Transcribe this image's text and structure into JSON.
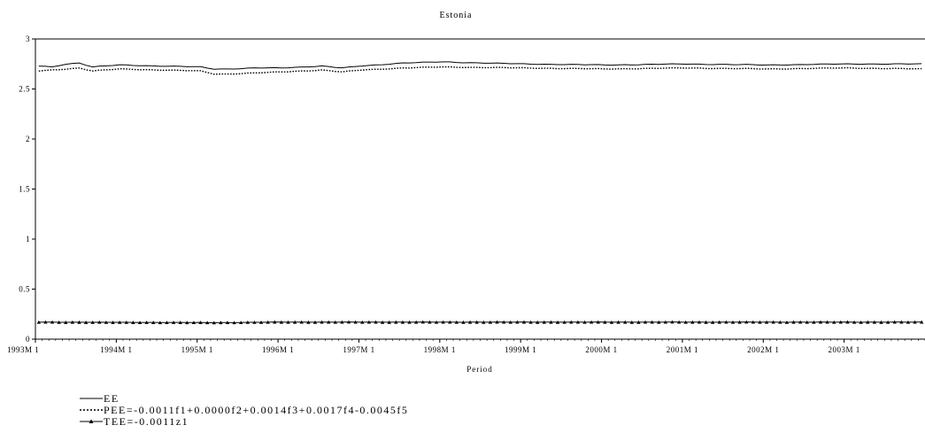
{
  "chart_data": {
    "type": "line",
    "title": "Estonia",
    "xlabel": "Period",
    "ylabel": "",
    "ylim": [
      0,
      3
    ],
    "yticks": [
      0,
      0.5,
      1,
      1.5,
      2,
      2.5,
      3
    ],
    "ytick_labels": [
      "0",
      "0.5",
      "1",
      "1.5",
      "2",
      "2.5",
      "3"
    ],
    "x_start": "1993M1",
    "x_end": "2003M12",
    "x_tick_labels": [
      "1993M 1",
      "1994M 1",
      "1995M 1",
      "1996M 1",
      "1997M 1",
      "1998M 1",
      "1999M 1",
      "2000M 1",
      "2001M 1",
      "2002M 1",
      "2003M 1"
    ],
    "grid": false,
    "legend_position": "bottom-left",
    "series": [
      {
        "name": "EE",
        "style": "solid",
        "color": "#000000",
        "anchors": [
          [
            "1993M1",
            2.73
          ],
          [
            "1993M3",
            2.72
          ],
          [
            "1993M5",
            2.75
          ],
          [
            "1993M7",
            2.76
          ],
          [
            "1993M9",
            2.72
          ],
          [
            "1994M1",
            2.74
          ],
          [
            "1994M7",
            2.73
          ],
          [
            "1995M1",
            2.72
          ],
          [
            "1995M3",
            2.7
          ],
          [
            "1995M5",
            2.7
          ],
          [
            "1995M9",
            2.71
          ],
          [
            "1996M1",
            2.71
          ],
          [
            "1996M7",
            2.73
          ],
          [
            "1996M10",
            2.71
          ],
          [
            "1997M1",
            2.73
          ],
          [
            "1997M7",
            2.76
          ],
          [
            "1998M1",
            2.77
          ],
          [
            "1999M1",
            2.75
          ],
          [
            "2000M1",
            2.74
          ],
          [
            "2001M1",
            2.75
          ],
          [
            "2002M1",
            2.74
          ],
          [
            "2003M1",
            2.75
          ],
          [
            "2003M12",
            2.75
          ]
        ]
      },
      {
        "name": "PEE=-0.0011f1+0.0000f2+0.0014f3+0.0017f4-0.0045f5",
        "style": "dotted",
        "color": "#000000",
        "anchors": [
          [
            "1993M1",
            2.68
          ],
          [
            "1993M3",
            2.69
          ],
          [
            "1993M5",
            2.7
          ],
          [
            "1993M7",
            2.71
          ],
          [
            "1993M9",
            2.68
          ],
          [
            "1994M1",
            2.7
          ],
          [
            "1994M7",
            2.69
          ],
          [
            "1995M1",
            2.68
          ],
          [
            "1995M3",
            2.65
          ],
          [
            "1995M5",
            2.65
          ],
          [
            "1995M9",
            2.66
          ],
          [
            "1996M1",
            2.67
          ],
          [
            "1996M7",
            2.69
          ],
          [
            "1996M10",
            2.67
          ],
          [
            "1997M1",
            2.69
          ],
          [
            "1997M7",
            2.71
          ],
          [
            "1998M1",
            2.72
          ],
          [
            "1999M1",
            2.71
          ],
          [
            "2000M1",
            2.7
          ],
          [
            "2001M1",
            2.71
          ],
          [
            "2002M1",
            2.7
          ],
          [
            "2003M1",
            2.71
          ],
          [
            "2003M12",
            2.7
          ]
        ]
      },
      {
        "name": "TEE=-0.0011z1",
        "style": "solid-triangle-markers",
        "color": "#000000",
        "anchors": [
          [
            "1993M1",
            0.17
          ],
          [
            "1995M3",
            0.165
          ],
          [
            "1996M1",
            0.17
          ],
          [
            "2003M12",
            0.17
          ]
        ]
      }
    ]
  }
}
